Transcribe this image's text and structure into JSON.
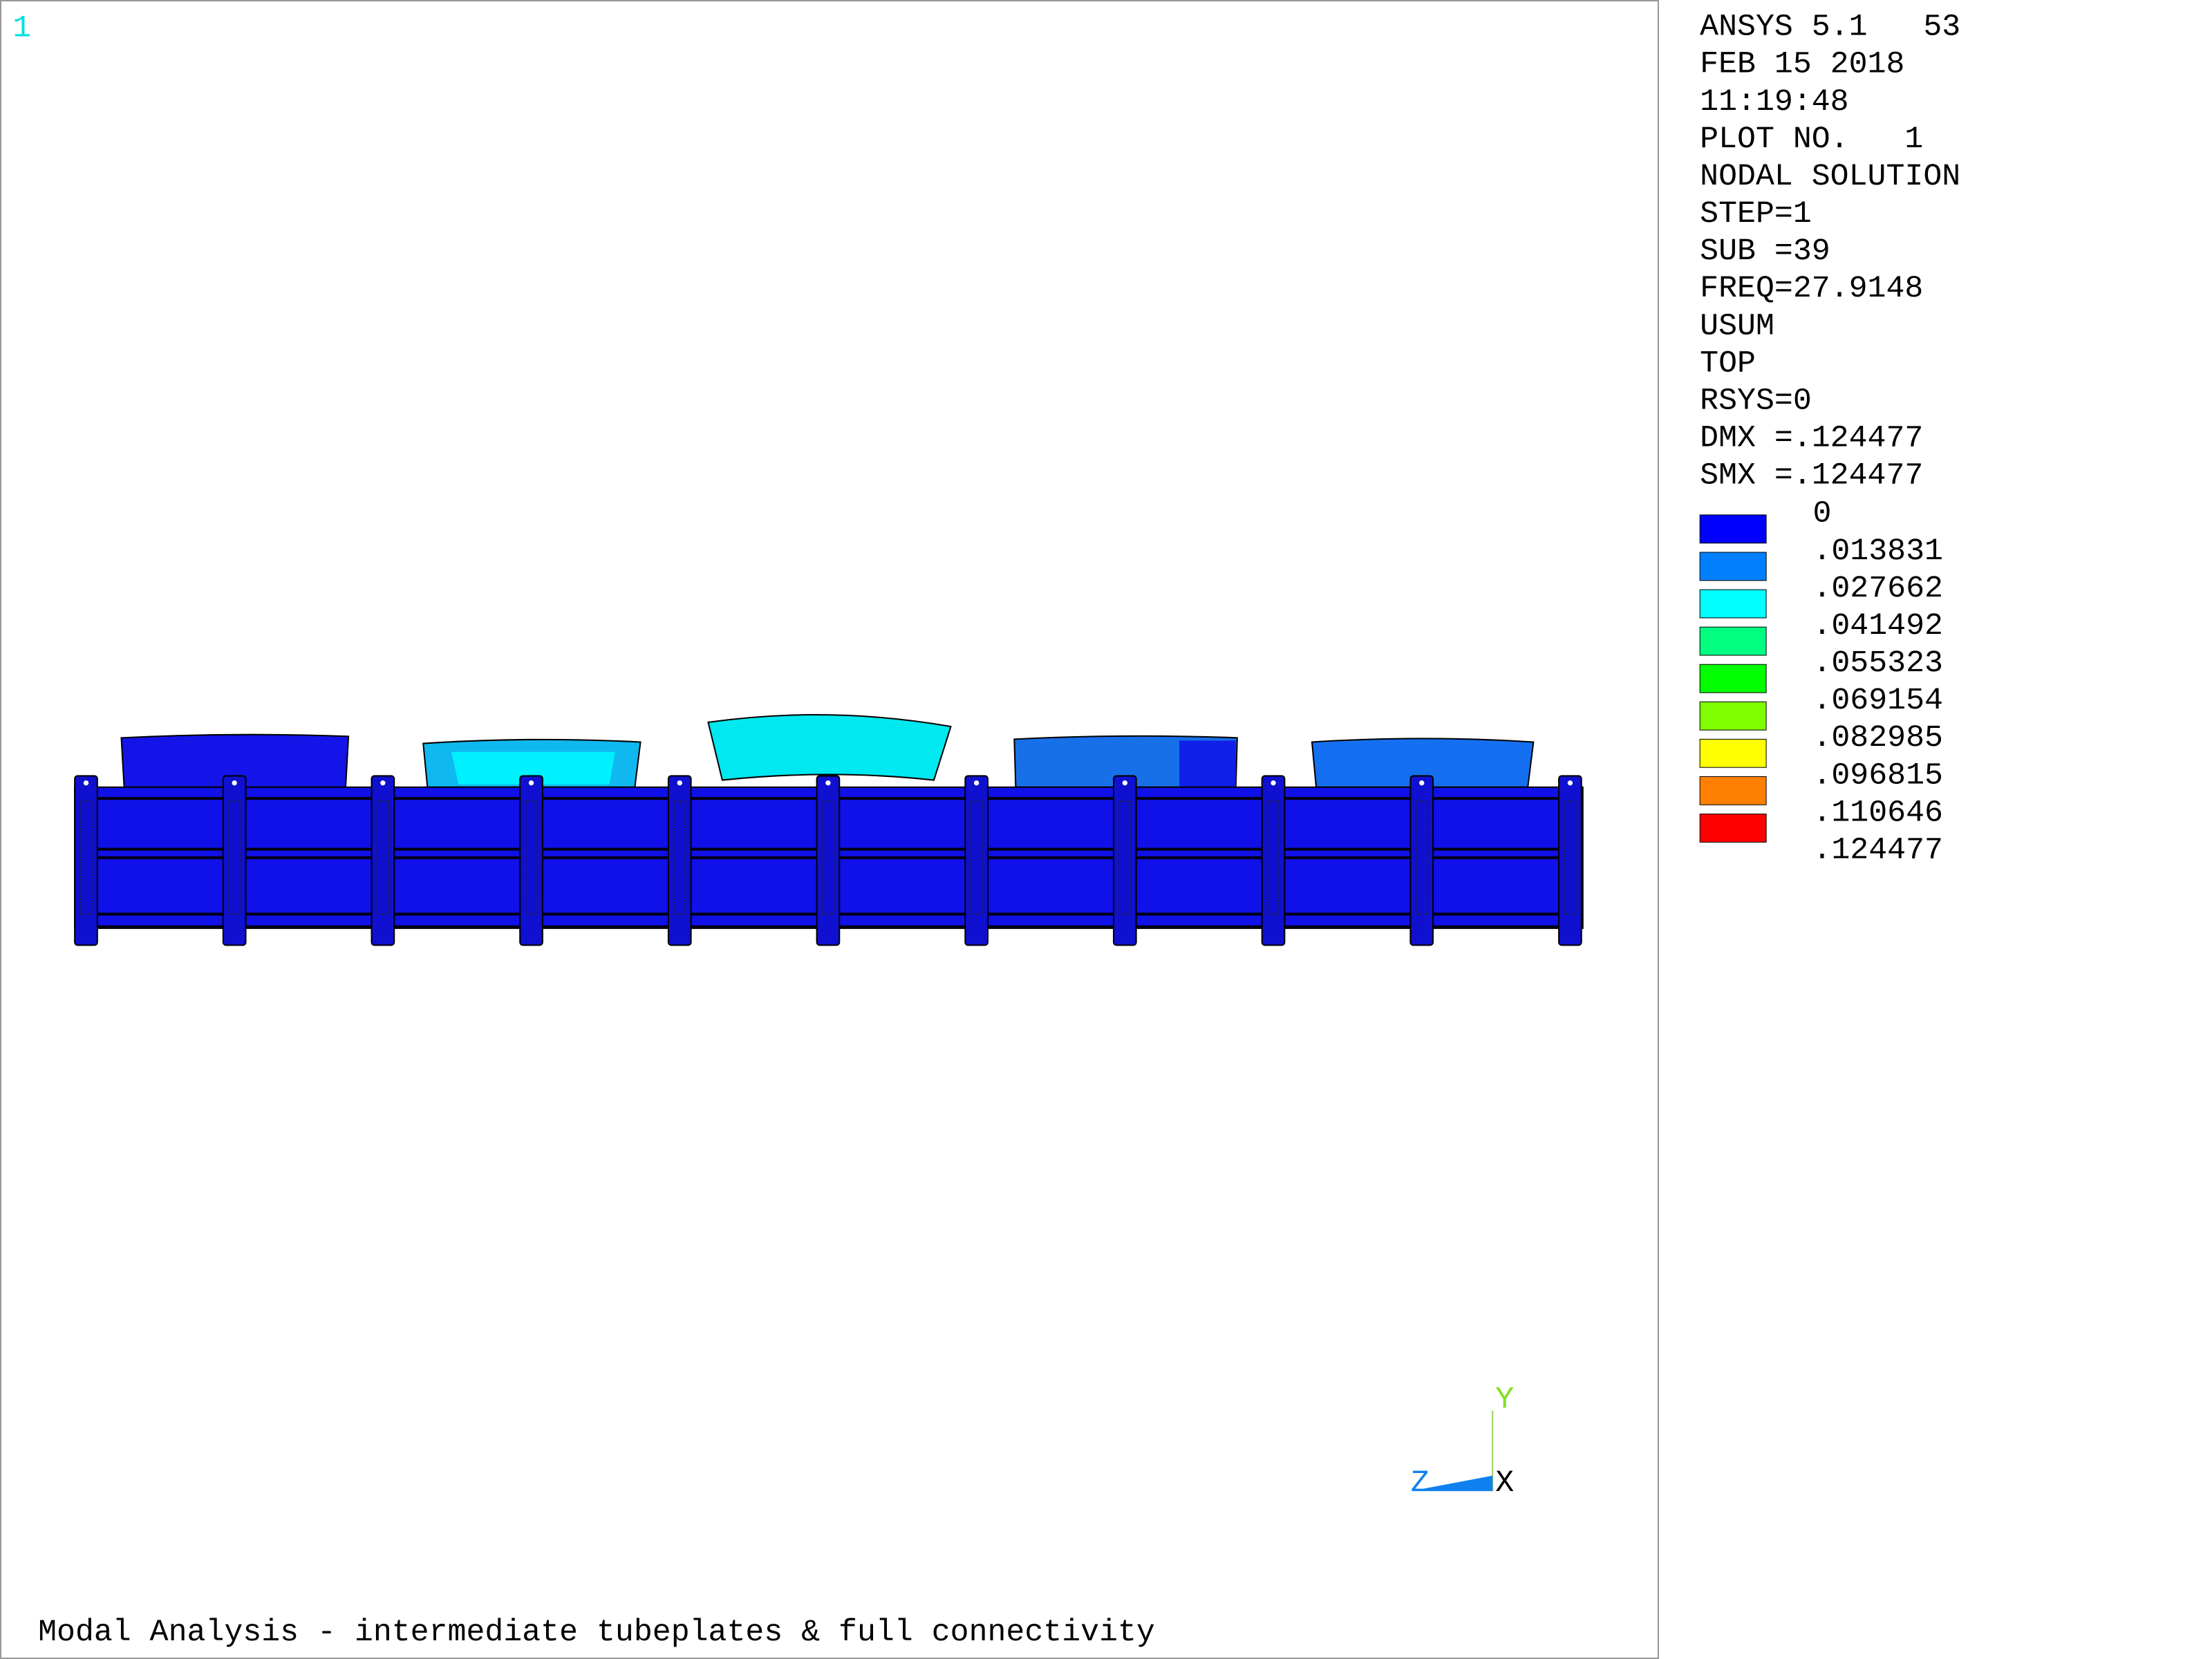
{
  "window_number": "1",
  "info_lines": [
    "ANSYS 5.1   53",
    "FEB 15 2018",
    "11:19:48",
    "PLOT NO.   1",
    "NODAL SOLUTION",
    "STEP=1",
    "SUB =39",
    "FREQ=27.9148",
    "USUM",
    "TOP",
    "RSYS=0",
    "DMX =.124477",
    "SMX =.124477"
  ],
  "legend": {
    "labels": [
      "0",
      ".013831",
      ".027662",
      ".041492",
      ".055323",
      ".069154",
      ".082985",
      ".096815",
      ".110646",
      ".124477"
    ],
    "colors": [
      "#0000ff",
      "#0080ff",
      "#00ffff",
      "#00ff80",
      "#00ff00",
      "#80ff00",
      "#ffff00",
      "#ff8000",
      "#ff0000"
    ]
  },
  "triad": {
    "y": "Y",
    "z": "Z",
    "x": "X"
  },
  "caption": "Modal Analysis - intermediate tubeplates & full connectivity"
}
